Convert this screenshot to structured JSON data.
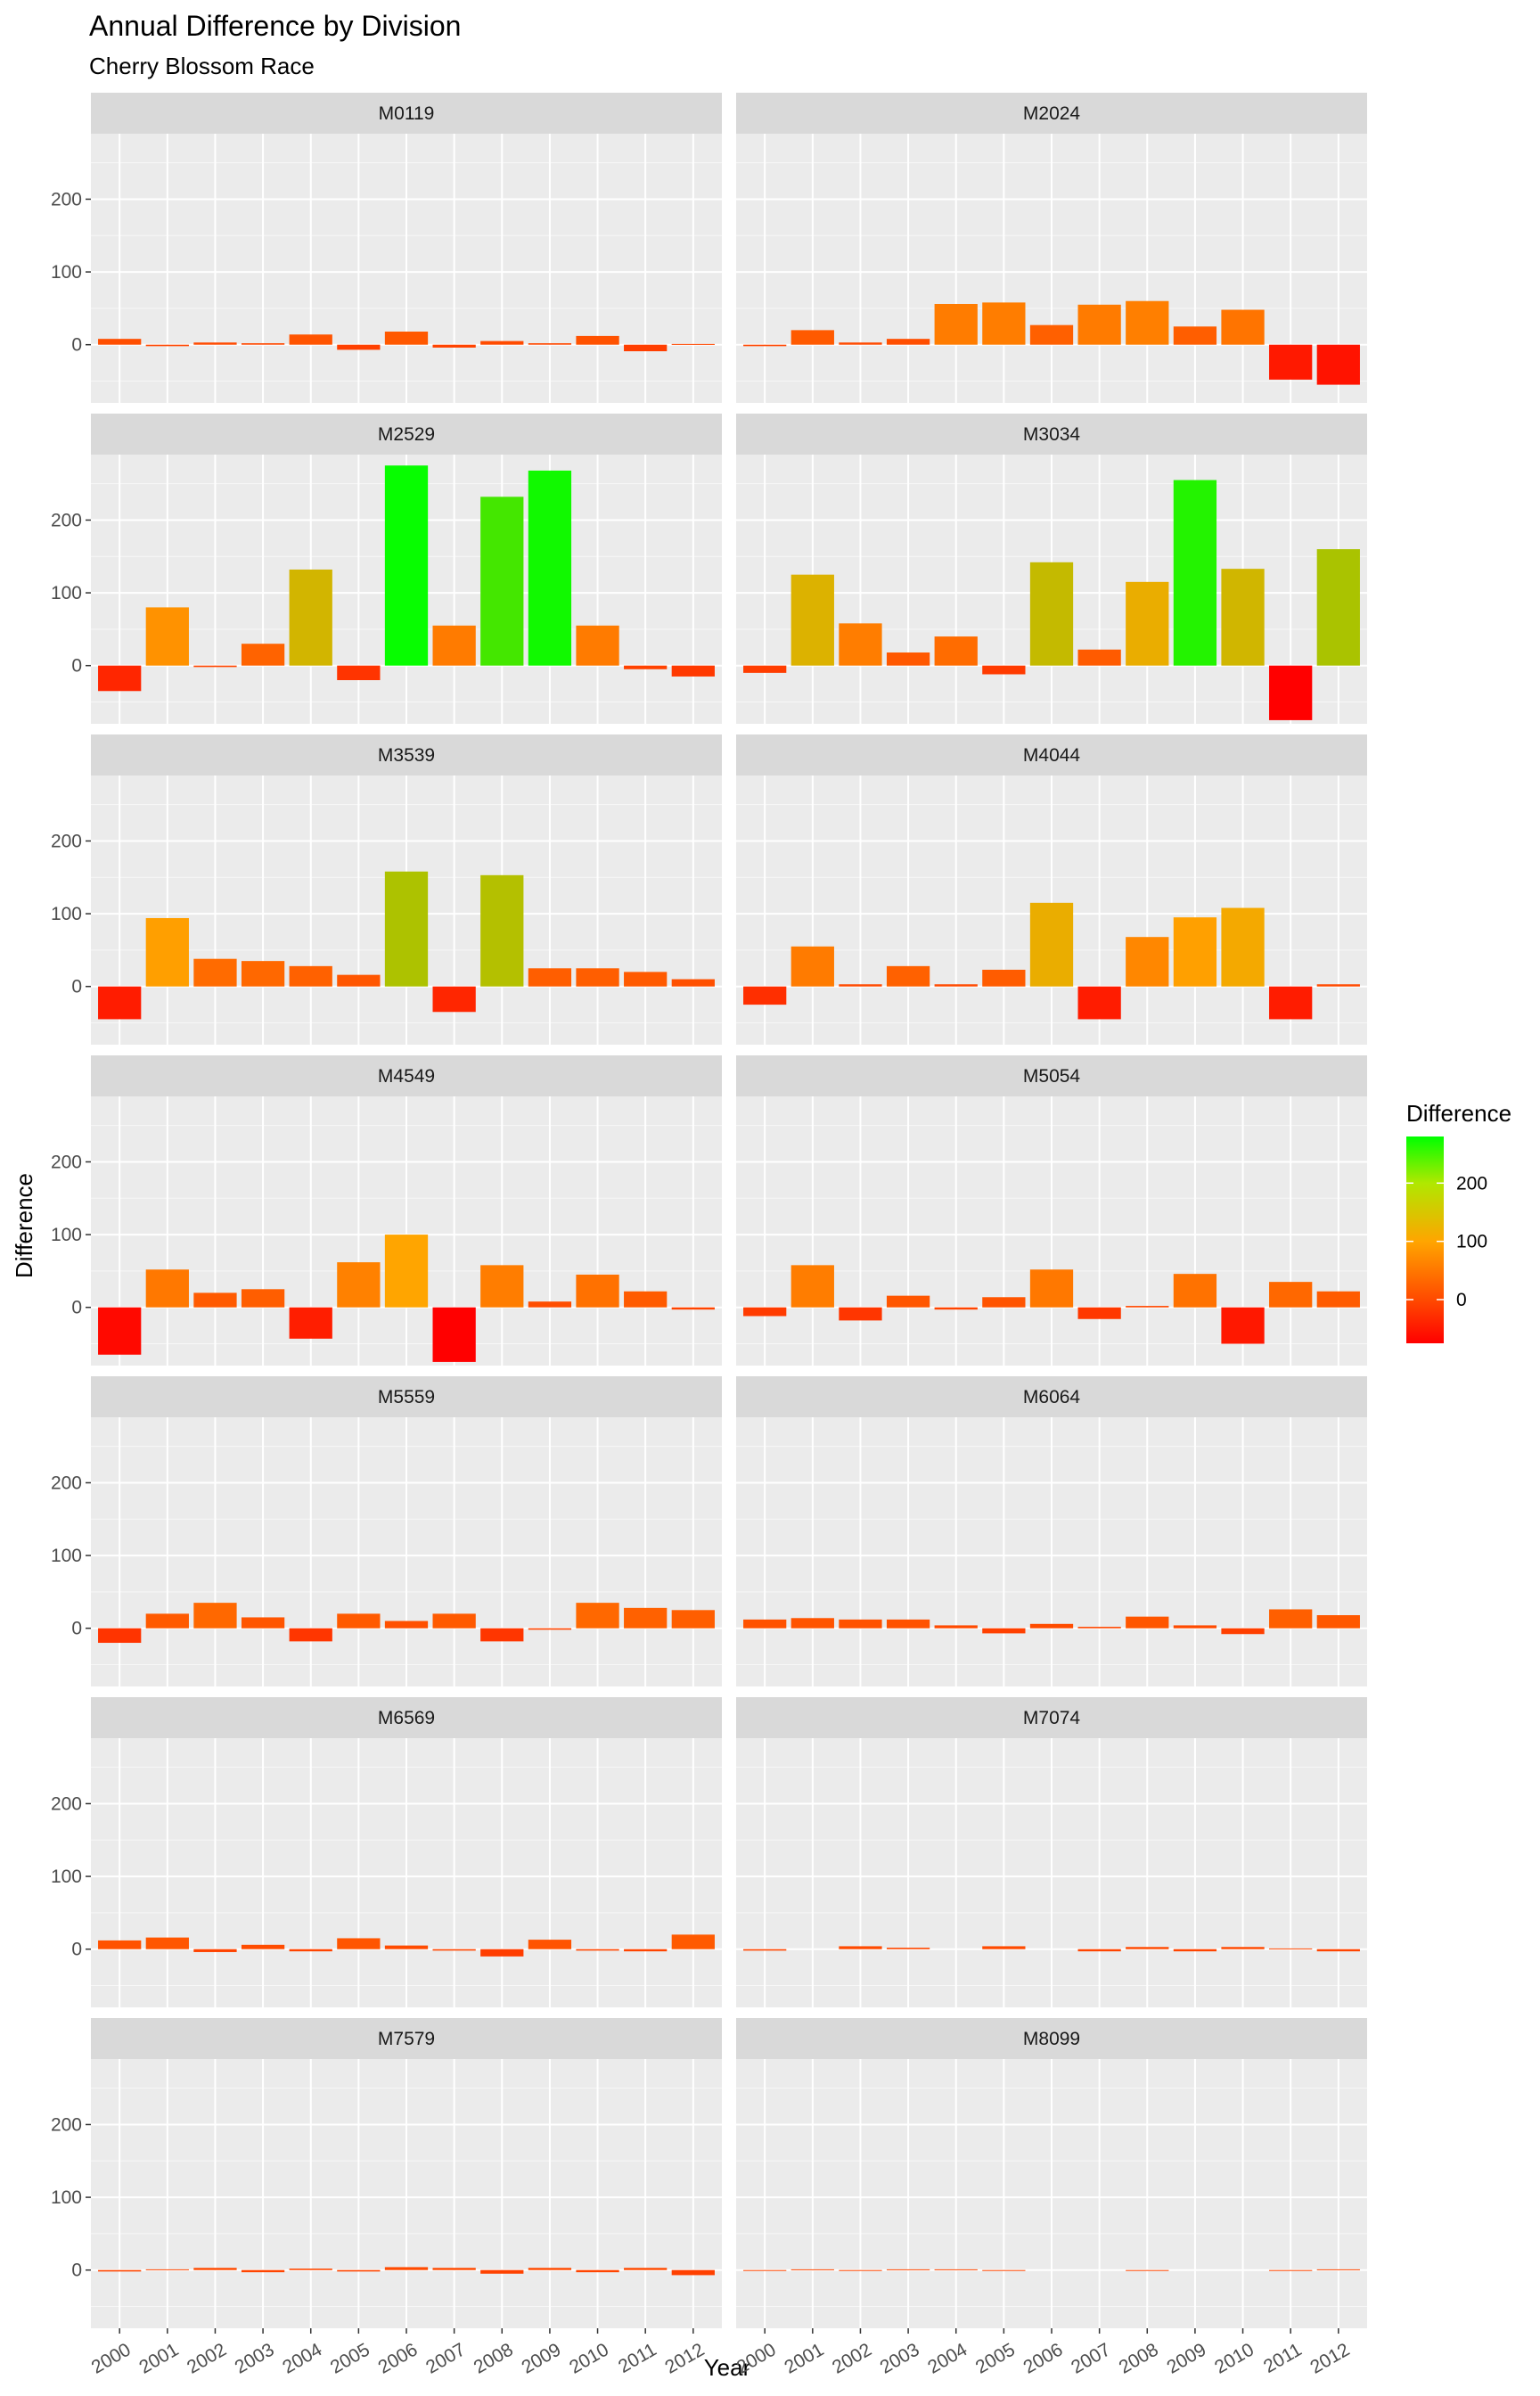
{
  "chart_data": {
    "type": "bar",
    "title": "Annual Difference by Division",
    "subtitle": "Cherry Blossom Race",
    "xlabel": "Year",
    "ylabel": "Difference",
    "y_ticks": [
      0,
      100,
      200
    ],
    "ylim": [
      -80,
      290
    ],
    "grid": true,
    "categories": [
      "2000",
      "2001",
      "2002",
      "2003",
      "2004",
      "2005",
      "2006",
      "2007",
      "2008",
      "2009",
      "2010",
      "2011",
      "2012"
    ],
    "legend": {
      "title": "Difference",
      "placement": "right",
      "ticks": [
        0,
        100,
        200
      ],
      "range": [
        -75,
        280
      ],
      "colors": [
        "#ff0000",
        "#ffa500",
        "#00ff00"
      ]
    },
    "panels": [
      {
        "name": "M0119",
        "values": [
          8,
          -2,
          3,
          2,
          14,
          -7,
          18,
          -4,
          5,
          2,
          12,
          -9,
          1
        ]
      },
      {
        "name": "M2024",
        "values": [
          -2,
          20,
          3,
          8,
          56,
          58,
          27,
          55,
          60,
          25,
          48,
          -48,
          -55
        ]
      },
      {
        "name": "M2529",
        "values": [
          -35,
          80,
          -2,
          30,
          132,
          -20,
          275,
          55,
          232,
          268,
          55,
          -5,
          -15
        ]
      },
      {
        "name": "M3034",
        "values": [
          -10,
          125,
          58,
          18,
          40,
          -12,
          142,
          22,
          115,
          255,
          133,
          -75,
          160
        ]
      },
      {
        "name": "M3539",
        "values": [
          -45,
          94,
          38,
          35,
          28,
          16,
          158,
          -35,
          153,
          25,
          25,
          20,
          10
        ]
      },
      {
        "name": "M4044",
        "values": [
          -25,
          55,
          3,
          28,
          3,
          23,
          115,
          -45,
          68,
          95,
          108,
          -45,
          3
        ]
      },
      {
        "name": "M4549",
        "values": [
          -65,
          52,
          20,
          25,
          -43,
          62,
          100,
          -75,
          58,
          8,
          45,
          22,
          -3
        ]
      },
      {
        "name": "M5054",
        "values": [
          -12,
          58,
          -18,
          16,
          -3,
          14,
          52,
          -16,
          2,
          46,
          -50,
          35,
          22
        ]
      },
      {
        "name": "M5559",
        "values": [
          -20,
          20,
          35,
          15,
          -18,
          20,
          10,
          20,
          -18,
          -2,
          35,
          28,
          25
        ]
      },
      {
        "name": "M6064",
        "values": [
          12,
          14,
          12,
          12,
          4,
          -7,
          6,
          2,
          16,
          4,
          -8,
          26,
          18
        ]
      },
      {
        "name": "M6569",
        "values": [
          12,
          16,
          -4,
          6,
          -3,
          15,
          5,
          -2,
          -10,
          13,
          -2,
          -3,
          20
        ]
      },
      {
        "name": "M7074",
        "values": [
          -2,
          0,
          4,
          2,
          0,
          4,
          0,
          -3,
          3,
          -3,
          3,
          1,
          -3
        ]
      },
      {
        "name": "M7579",
        "values": [
          -2,
          1,
          3,
          -3,
          2,
          -2,
          4,
          3,
          -5,
          3,
          -3,
          3,
          -7
        ]
      },
      {
        "name": "M8099",
        "values": [
          -1,
          1,
          -1,
          1,
          1,
          -1,
          0,
          0,
          -1,
          0,
          0,
          -1,
          1
        ]
      }
    ]
  }
}
